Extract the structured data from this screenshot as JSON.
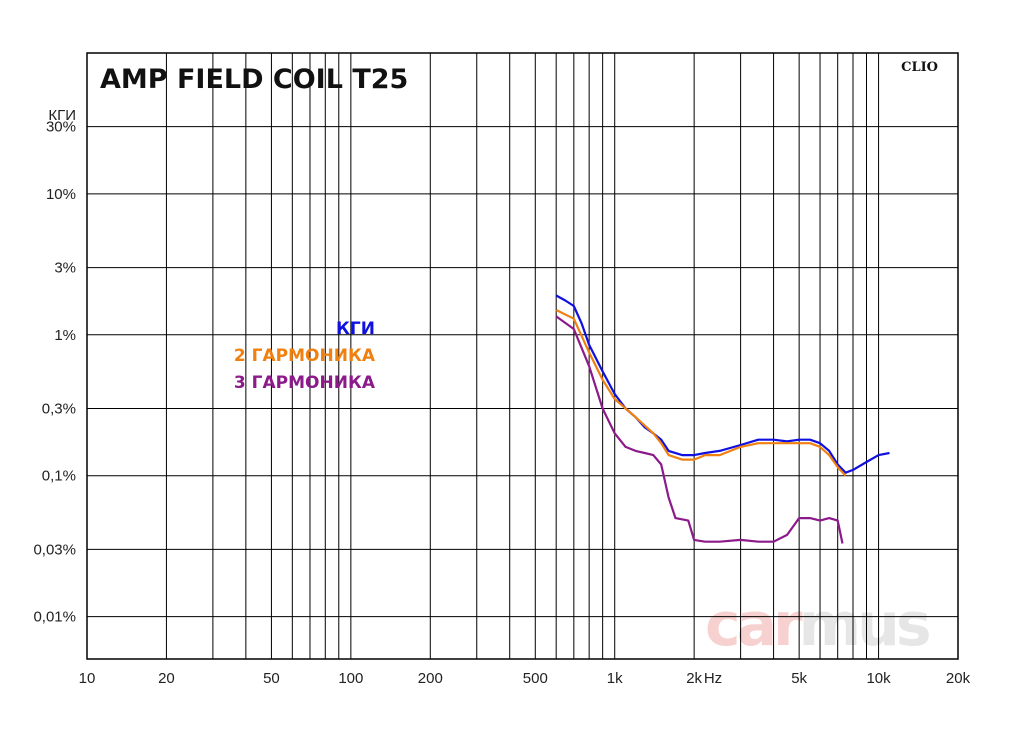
{
  "chart_data": {
    "type": "line",
    "title": "AMP FIELD COIL T25",
    "brand_label": "CLIO",
    "watermark": {
      "part1": "car",
      "part2": "mus"
    },
    "x_unit_label": "Hz",
    "y_axis_title": "КГИ",
    "x_scale": "log",
    "y_scale": "log",
    "xlim": [
      10,
      20000
    ],
    "ylim": [
      0.005,
      100
    ],
    "grid": true,
    "legend_position": "left-center",
    "x_ticks": [
      {
        "value": 10,
        "label": "10"
      },
      {
        "value": 20,
        "label": "20"
      },
      {
        "value": 50,
        "label": "50"
      },
      {
        "value": 100,
        "label": "100"
      },
      {
        "value": 200,
        "label": "200"
      },
      {
        "value": 500,
        "label": "500"
      },
      {
        "value": 1000,
        "label": "1k"
      },
      {
        "value": 2000,
        "label": "2k"
      },
      {
        "value": 5000,
        "label": "5k"
      },
      {
        "value": 10000,
        "label": "10k"
      },
      {
        "value": 20000,
        "label": "20k"
      }
    ],
    "y_ticks": [
      {
        "value": 30,
        "label": "30%"
      },
      {
        "value": 10,
        "label": "10%"
      },
      {
        "value": 3,
        "label": "3%"
      },
      {
        "value": 1,
        "label": "1%"
      },
      {
        "value": 0.3,
        "label": "0,3%"
      },
      {
        "value": 0.1,
        "label": "0,1%"
      },
      {
        "value": 0.03,
        "label": "0,03%"
      },
      {
        "value": 0.01,
        "label": "0,01%"
      }
    ],
    "series": [
      {
        "name": "КГИ",
        "color": "#1010e0",
        "points": [
          [
            600,
            1.9
          ],
          [
            650,
            1.75
          ],
          [
            700,
            1.6
          ],
          [
            750,
            1.2
          ],
          [
            800,
            0.85
          ],
          [
            900,
            0.55
          ],
          [
            1000,
            0.38
          ],
          [
            1100,
            0.3
          ],
          [
            1200,
            0.26
          ],
          [
            1300,
            0.22
          ],
          [
            1400,
            0.2
          ],
          [
            1500,
            0.18
          ],
          [
            1600,
            0.15
          ],
          [
            1800,
            0.14
          ],
          [
            2000,
            0.14
          ],
          [
            2200,
            0.145
          ],
          [
            2500,
            0.15
          ],
          [
            3000,
            0.165
          ],
          [
            3500,
            0.18
          ],
          [
            4000,
            0.18
          ],
          [
            4500,
            0.175
          ],
          [
            5000,
            0.18
          ],
          [
            5500,
            0.18
          ],
          [
            6000,
            0.17
          ],
          [
            6500,
            0.15
          ],
          [
            7000,
            0.12
          ],
          [
            7500,
            0.105
          ],
          [
            8000,
            0.11
          ],
          [
            9000,
            0.125
          ],
          [
            10000,
            0.14
          ],
          [
            11000,
            0.145
          ]
        ]
      },
      {
        "name": "2 ГАРМОНИКА",
        "color": "#f08010",
        "points": [
          [
            600,
            1.5
          ],
          [
            700,
            1.3
          ],
          [
            800,
            0.75
          ],
          [
            900,
            0.48
          ],
          [
            1000,
            0.35
          ],
          [
            1200,
            0.26
          ],
          [
            1400,
            0.2
          ],
          [
            1500,
            0.17
          ],
          [
            1600,
            0.14
          ],
          [
            1800,
            0.13
          ],
          [
            2000,
            0.13
          ],
          [
            2200,
            0.14
          ],
          [
            2500,
            0.14
          ],
          [
            3000,
            0.16
          ],
          [
            3500,
            0.17
          ],
          [
            4000,
            0.17
          ],
          [
            5000,
            0.17
          ],
          [
            5500,
            0.17
          ],
          [
            6000,
            0.16
          ],
          [
            6500,
            0.14
          ],
          [
            7000,
            0.115
          ],
          [
            7500,
            0.1
          ]
        ]
      },
      {
        "name": "3 ГАРМОНИКА",
        "color": "#8c1a8a",
        "points": [
          [
            600,
            1.35
          ],
          [
            700,
            1.1
          ],
          [
            800,
            0.6
          ],
          [
            900,
            0.3
          ],
          [
            1000,
            0.2
          ],
          [
            1100,
            0.16
          ],
          [
            1200,
            0.15
          ],
          [
            1300,
            0.145
          ],
          [
            1400,
            0.14
          ],
          [
            1500,
            0.12
          ],
          [
            1600,
            0.07
          ],
          [
            1700,
            0.05
          ],
          [
            1900,
            0.048
          ],
          [
            2000,
            0.035
          ],
          [
            2200,
            0.034
          ],
          [
            2500,
            0.034
          ],
          [
            3000,
            0.035
          ],
          [
            3500,
            0.034
          ],
          [
            4000,
            0.034
          ],
          [
            4500,
            0.038
          ],
          [
            5000,
            0.05
          ],
          [
            5500,
            0.05
          ],
          [
            6000,
            0.048
          ],
          [
            6500,
            0.05
          ],
          [
            7000,
            0.048
          ],
          [
            7300,
            0.033
          ]
        ]
      }
    ]
  }
}
